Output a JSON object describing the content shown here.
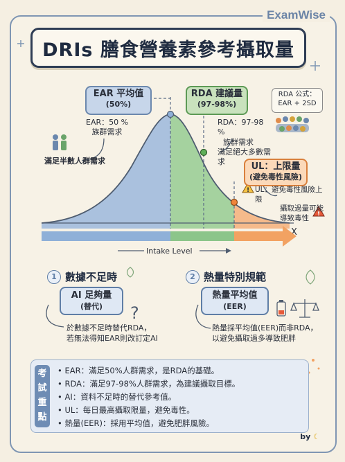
{
  "brand": "ExamWise",
  "title": "DRIs 膳食營養素參考攝取量",
  "ear": {
    "box_title": "EAR 平均值",
    "box_sub": "(50%)",
    "note_line1": "EAR：50 %",
    "note_line2": "族群需求",
    "side_label": "滿足半數人群需求"
  },
  "rda": {
    "box_title": "RDA 建議量",
    "box_sub": "(97-98%)",
    "note_line1": "RDA：97-98 %",
    "note_line2": "族群需求",
    "note_line3": "滿足絕大多數需求",
    "formula_line1": "RDA 公式：",
    "formula_line2": "EAR + 2SD"
  },
  "ul": {
    "box_title": "UL：上限量",
    "box_sub": "(避免毒性風險)",
    "warn_line1": "UL：避免毒性風險上限",
    "warn_line2": "攝取過量可能",
    "warn_line3": "導致毒性"
  },
  "chart": {
    "x_axis_label": "Intake Level",
    "x_marker": "X"
  },
  "section1": {
    "num": "1",
    "title": "數據不足時",
    "card_line1": "AI 足夠量",
    "card_line2": "(替代)",
    "desc_line1": "於數據不足時替代RDA，",
    "desc_line2": "若無法得知EAR則改訂定AI"
  },
  "section2": {
    "num": "2",
    "title": "熱量特別規範",
    "card_line1": "熱量平均值",
    "card_line2": "(EER)",
    "desc_line1": "熱量採平均值(EER)而非RDA，",
    "desc_line2": "以避免攝取過多導致肥胖"
  },
  "summary": {
    "tag": [
      "考",
      "試",
      "重",
      "點"
    ],
    "items": [
      "EAR：滿足50%人群需求，是RDA的基礎。",
      "RDA：滿足97-98%人群需求，為建議攝取目標。",
      "AI：資料不足時的替代參考值。",
      "UL：每日最高攝取限量，避免毒性。",
      "熱量(EER)：採用平均值，避免肥胖風險。"
    ]
  },
  "footer": {
    "by": "by"
  },
  "colors": {
    "ear_blue": "#8fb0d8",
    "rda_green": "#8cc58a",
    "ul_orange": "#f2a262",
    "frame": "#7f96b3"
  }
}
